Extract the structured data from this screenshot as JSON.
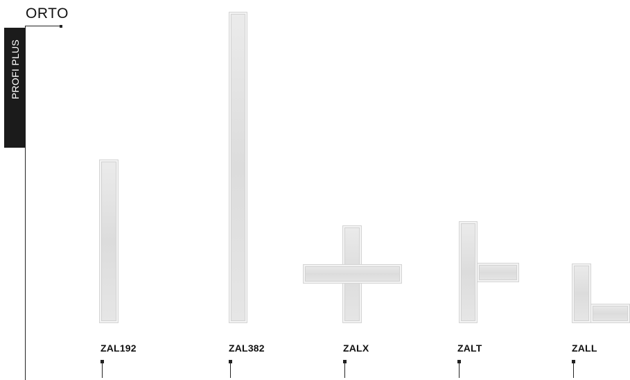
{
  "header": {
    "title": "ORTO",
    "side_tab": "PROFI PLUS"
  },
  "products": [
    {
      "code": "ZAL192"
    },
    {
      "code": "ZAL382"
    },
    {
      "code": "ZALX"
    },
    {
      "code": "ZALT"
    },
    {
      "code": "ZALL"
    }
  ],
  "colors": {
    "panel": "#e2e2e2",
    "panel_edge": "#d2d2d2",
    "line": "#222222",
    "tab_bg": "#1b1b1b",
    "tab_text": "#ffffff"
  }
}
